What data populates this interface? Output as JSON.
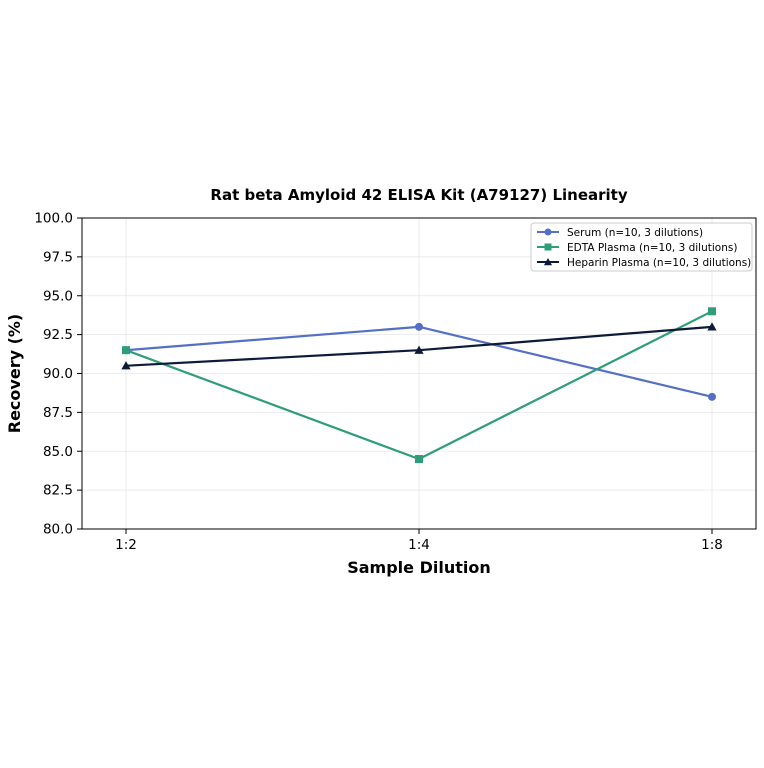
{
  "chart_data": {
    "type": "line",
    "title": "Rat beta Amyloid 42 ELISA Kit (A79127) Linearity",
    "xlabel": "Sample Dilution",
    "ylabel": "Recovery (%)",
    "categories": [
      "1:2",
      "1:4",
      "1:8"
    ],
    "ylim": [
      80.0,
      100.0
    ],
    "yticks": [
      "80.0",
      "82.5",
      "85.0",
      "87.5",
      "90.0",
      "92.5",
      "95.0",
      "97.5",
      "100.0"
    ],
    "grid": true,
    "legend_position": "top-right",
    "series": [
      {
        "name": "Serum (n=10, 3 dilutions)",
        "values": [
          91.5,
          93.0,
          88.5
        ],
        "color": "#5470c6",
        "marker": "circle"
      },
      {
        "name": "EDTA Plasma (n=10, 3 dilutions)",
        "values": [
          91.5,
          84.5,
          94.0
        ],
        "color": "#2e9e78",
        "marker": "square"
      },
      {
        "name": "Heparin Plasma (n=10, 3 dilutions)",
        "values": [
          90.5,
          91.5,
          93.0
        ],
        "color": "#0d1a3a",
        "marker": "triangle"
      }
    ]
  }
}
